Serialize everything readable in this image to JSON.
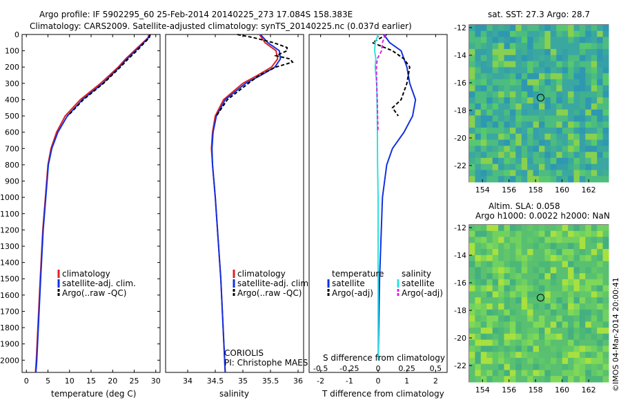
{
  "header": {
    "line1": "Argo profile: IF 5902295_60 25-Feb-2014 20140225_273 17.084S 158.383E",
    "line2": "Climatology: CARS2009. Satellite-adjusted climatology: synTS_20140225.nc (0.037d earlier)"
  },
  "annotations": {
    "coriolis": "CORIOLIS",
    "pi": "PI: Christophe MAES",
    "sst": "sat. SST: 27.3 Argo: 28.7",
    "sla": "Altim. SLA: 0.058",
    "h": "Argo h1000: 0.0022 h2000: NaN",
    "imos": "©IMOS 04-Mar-2014 20:00:41"
  },
  "colors": {
    "climatology": "#e02020",
    "satellite": "#1030e0",
    "argo": "#000000",
    "sat_s": "#30e0e0",
    "argo_s": "#e020e0"
  },
  "chart_data": [
    {
      "type": "line",
      "name": "temperature",
      "xlabel": "temperature (deg C)",
      "xlim": [
        -1,
        31
      ],
      "xticks": [
        0,
        5,
        10,
        15,
        20,
        25,
        30
      ],
      "ylim": [
        0,
        2075
      ],
      "yticks": [
        0,
        100,
        200,
        300,
        400,
        500,
        600,
        700,
        800,
        900,
        1000,
        1100,
        1200,
        1300,
        1400,
        1500,
        1600,
        1700,
        1800,
        1900,
        2000
      ],
      "legend": [
        "climatology",
        "satellite-adj. clim.",
        "Argo(..raw -QC)"
      ],
      "series": [
        {
          "name": "climatology",
          "depth": [
            0,
            20,
            50,
            100,
            150,
            200,
            300,
            400,
            500,
            600,
            700,
            800,
            1000,
            1200,
            1500,
            2000,
            2075
          ],
          "values": [
            28.4,
            28.2,
            27.0,
            25.0,
            23.0,
            21.3,
            17.2,
            12.5,
            9.0,
            7.0,
            5.7,
            5.0,
            4.4,
            3.8,
            3.2,
            2.3,
            2.1
          ]
        },
        {
          "name": "satellite-adj. clim.",
          "depth": [
            0,
            20,
            50,
            100,
            150,
            200,
            300,
            400,
            500,
            600,
            700,
            800,
            1000,
            1200,
            1500,
            2000,
            2075
          ],
          "values": [
            28.6,
            28.3,
            27.2,
            25.3,
            23.3,
            21.6,
            17.7,
            13.0,
            9.5,
            7.3,
            5.9,
            5.1,
            4.5,
            3.9,
            3.3,
            2.4,
            2.2
          ]
        },
        {
          "name": "Argo(..raw -QC)",
          "depth": [
            0,
            20,
            50,
            100,
            150,
            200,
            300,
            400,
            500
          ],
          "values": [
            28.7,
            28.5,
            27.4,
            25.6,
            23.6,
            21.8,
            17.9,
            13.2,
            9.6
          ]
        }
      ]
    },
    {
      "type": "line",
      "name": "salinity",
      "xlabel": "salinity",
      "xlim": [
        33.6,
        36.1
      ],
      "xticks": [
        34,
        34.5,
        35,
        35.5,
        36
      ],
      "ylim": [
        0,
        2075
      ],
      "legend": [
        "climatology",
        "satellite-adj. clim.",
        "Argo(..raw -QC)"
      ],
      "series": [
        {
          "name": "climatology",
          "depth": [
            0,
            50,
            100,
            150,
            200,
            250,
            300,
            400,
            500,
            600,
            700,
            800,
            1000,
            1500,
            2000,
            2075
          ],
          "values": [
            35.3,
            35.4,
            35.6,
            35.63,
            35.52,
            35.27,
            35.0,
            34.65,
            34.5,
            34.45,
            34.43,
            34.45,
            34.5,
            34.6,
            34.67,
            34.68
          ]
        },
        {
          "name": "satellite-adj. clim.",
          "depth": [
            0,
            50,
            100,
            150,
            200,
            250,
            300,
            400,
            500,
            600,
            700,
            800,
            1000,
            1500,
            2000,
            2075
          ],
          "values": [
            35.32,
            35.45,
            35.66,
            35.68,
            35.58,
            35.33,
            35.05,
            34.68,
            34.52,
            34.46,
            34.44,
            34.45,
            34.5,
            34.6,
            34.67,
            34.68
          ]
        },
        {
          "name": "Argo(..raw -QC)",
          "depth": [
            0,
            20,
            50,
            80,
            100,
            130,
            150,
            170,
            200,
            250,
            300,
            400,
            500
          ],
          "values": [
            34.9,
            35.2,
            35.55,
            35.8,
            35.8,
            35.6,
            35.85,
            35.9,
            35.6,
            35.3,
            35.1,
            34.72,
            34.52
          ]
        }
      ]
    },
    {
      "type": "line",
      "name": "differences",
      "xlabel": "T difference from climatology",
      "xlabel_top": "S difference from climatology",
      "xlim": [
        -2.4,
        2.4
      ],
      "xticks": [
        -2,
        -1,
        0,
        1,
        2
      ],
      "xticks_top": [
        "-0.5",
        "-0.25",
        "0",
        "0.25",
        "0.5"
      ],
      "ylim": [
        0,
        2075
      ],
      "legend_temperature_title": "temperature",
      "legend_salinity_title": "salinity",
      "legend": [
        "satellite",
        "Argo(-adj)",
        "satellite",
        "Argo(-adj)"
      ],
      "series": [
        {
          "name": "satellite",
          "depth": [
            0,
            50,
            100,
            200,
            300,
            400,
            500,
            600,
            700,
            800,
            1000,
            1500,
            2000
          ],
          "values": [
            0.2,
            0.4,
            0.8,
            1.0,
            1.1,
            1.3,
            1.2,
            0.9,
            0.5,
            0.3,
            0.15,
            0.05,
            0.0
          ]
        },
        {
          "name": "Argo(-adj)",
          "depth": [
            0,
            50,
            100,
            150,
            200,
            300,
            400,
            450,
            500
          ],
          "values": [
            0.3,
            -0.2,
            0.5,
            0.9,
            1.1,
            1.0,
            0.8,
            0.5,
            0.7
          ]
        },
        {
          "name": "satellite",
          "depth": [
            0,
            50,
            100,
            150,
            200,
            300,
            500,
            800,
            1000,
            1500,
            2000
          ],
          "values": [
            0.0,
            -0.1,
            -0.12,
            -0.08,
            -0.1,
            -0.05,
            -0.03,
            -0.02,
            0.0,
            0.0,
            0.0
          ]
        },
        {
          "name": "Argo(-adj)",
          "depth": [
            0,
            50,
            100,
            150,
            200,
            300,
            400,
            500,
            600
          ],
          "values": [
            0.25,
            0.15,
            0.12,
            -0.03,
            -0.06,
            -0.05,
            -0.03,
            -0.02,
            0.0
          ]
        }
      ]
    },
    {
      "type": "heatmap",
      "name": "sst-map",
      "xticks": [
        154,
        156,
        158,
        160,
        162
      ],
      "yticks": [
        -12,
        -14,
        -16,
        -18,
        -20,
        -22
      ],
      "xlim": [
        153,
        163.5
      ],
      "ylim": [
        -23.2,
        -11.8
      ],
      "float_position": [
        158.38,
        -17.08
      ]
    },
    {
      "type": "heatmap",
      "name": "sla-map",
      "xticks": [
        154,
        156,
        158,
        160,
        162
      ],
      "yticks": [
        -12,
        -14,
        -16,
        -18,
        -20,
        -22
      ],
      "xlim": [
        153,
        163.5
      ],
      "ylim": [
        -23.2,
        -11.8
      ],
      "float_position": [
        158.38,
        -17.08
      ]
    }
  ]
}
